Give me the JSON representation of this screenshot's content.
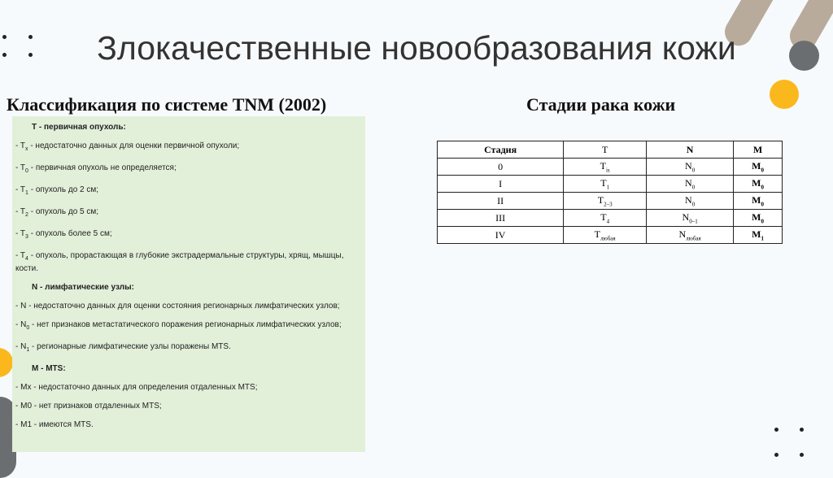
{
  "title": "Злокачественные новообразования кожи",
  "left_heading": "Классификация по системе TNM (2002)",
  "right_heading": "Стадии рака кожи",
  "classification": [
    {
      "type": "h",
      "text": "T - первичная опухоль:"
    },
    {
      "type": "i",
      "pre": "- T",
      "sub": "x",
      "text": " - недостаточно данных для оценки первичной опухоли;"
    },
    {
      "type": "i",
      "pre": "- T",
      "sub": "0",
      "text": " - первичная опухоль не определяется;"
    },
    {
      "type": "i",
      "pre": "- T",
      "sub": "1",
      "text": " - опухоль до 2 см;"
    },
    {
      "type": "i",
      "pre": "- T",
      "sub": "2",
      "text": " - опухоль до 5 см;"
    },
    {
      "type": "i",
      "pre": "- T",
      "sub": "3",
      "text": " - опухоль более 5 см;"
    },
    {
      "type": "i",
      "pre": "- T",
      "sub": "4",
      "text": " - опухоль, прорастающая в глубокие экстрадермальные структуры, хрящ, мышцы, кости."
    },
    {
      "type": "h",
      "text": "N - лимфатические узлы:"
    },
    {
      "type": "i",
      "pre": "- N",
      "sub": "",
      "text": " - недостаточно данных для оценки состояния регионарных лимфатических узлов;"
    },
    {
      "type": "i",
      "pre": "- N",
      "sub": "0",
      "text": " - нет признаков метастатического поражения регионарных лимфатических узлов;"
    },
    {
      "type": "i",
      "pre": "- N",
      "sub": "1",
      "text": " - регионарные лимфатические узлы поражены MTS."
    },
    {
      "type": "h",
      "text": "M - MTS:"
    },
    {
      "type": "i",
      "pre": "- Mx",
      "sub": "",
      "text": " - недостаточно данных для определения отдаленных MTS;"
    },
    {
      "type": "i",
      "pre": "- M0",
      "sub": "",
      "text": " - нет признаков отдаленных MTS;"
    },
    {
      "type": "i",
      "pre": "- M1",
      "sub": "",
      "text": " - имеются MTS."
    }
  ],
  "stages_table": {
    "headers": [
      "Стадия",
      "T",
      "N",
      "M"
    ],
    "rows": [
      [
        {
          "t": "0"
        },
        {
          "t": "T",
          "s": "is"
        },
        {
          "t": "N",
          "s": "0"
        },
        {
          "t": "M",
          "s": "0"
        }
      ],
      [
        {
          "t": "I"
        },
        {
          "t": "T",
          "s": "1"
        },
        {
          "t": "N",
          "s": "0"
        },
        {
          "t": "M",
          "s": "0"
        }
      ],
      [
        {
          "t": "II"
        },
        {
          "t": "T",
          "s": "2–3"
        },
        {
          "t": "N",
          "s": "0"
        },
        {
          "t": "M",
          "s": "0"
        }
      ],
      [
        {
          "t": "III"
        },
        {
          "t": "T",
          "s": "4"
        },
        {
          "t": "N",
          "s": "0–1"
        },
        {
          "t": "M",
          "s": "0"
        }
      ],
      [
        {
          "t": "IV"
        },
        {
          "t": "T",
          "s": "любая"
        },
        {
          "t": "N",
          "s": "любая"
        },
        {
          "t": "M",
          "s": "1"
        }
      ]
    ]
  },
  "colors": {
    "box_bg": "#e2efd9",
    "accent_orange": "#fbb81c",
    "accent_gray": "#6b6e70",
    "accent_tan": "#b9ab9c"
  }
}
